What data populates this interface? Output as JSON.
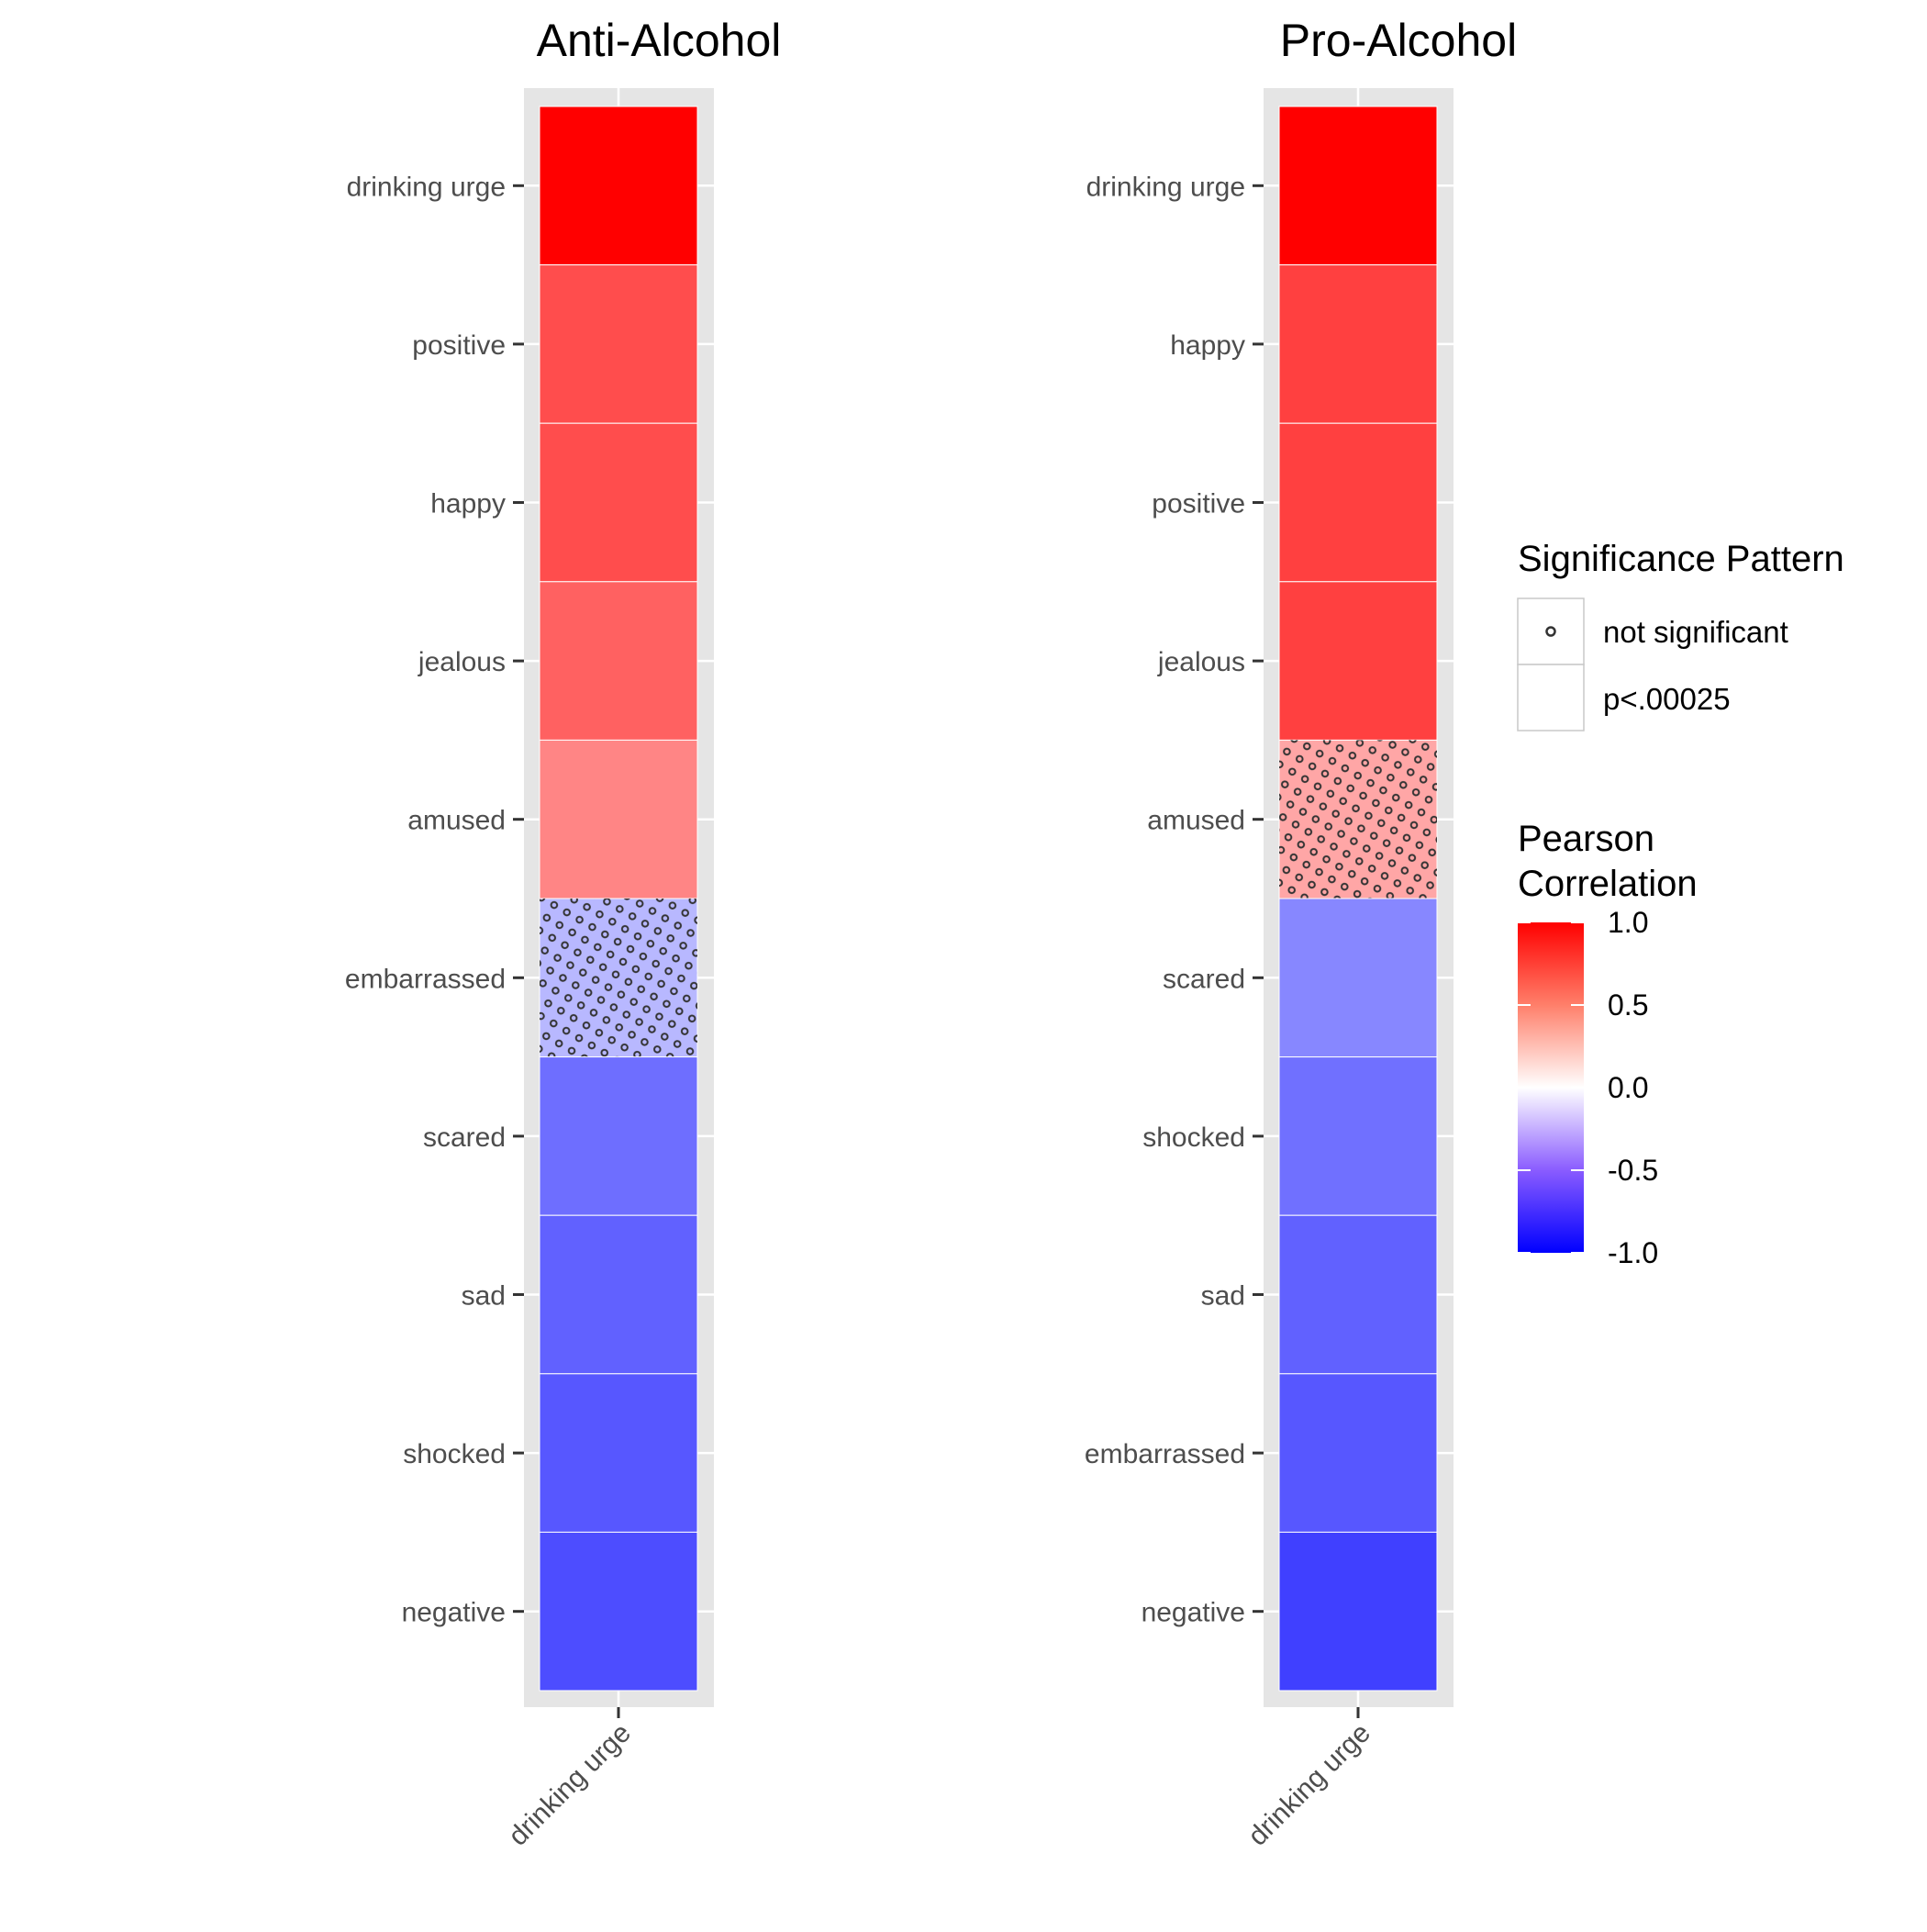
{
  "chart_data": [
    {
      "type": "heatmap",
      "title": "Anti-Alcohol",
      "x_categories": [
        "drinking urge"
      ],
      "y_categories": [
        "drinking urge",
        "positive",
        "happy",
        "jealous",
        "amused",
        "embarrassed",
        "scared",
        "sad",
        "shocked",
        "negative"
      ],
      "values": [
        1.0,
        0.7,
        0.7,
        0.62,
        0.48,
        -0.28,
        -0.57,
        -0.62,
        -0.66,
        -0.7
      ],
      "significance": [
        "p<.00025",
        "p<.00025",
        "p<.00025",
        "p<.00025",
        "p<.00025",
        "not significant",
        "p<.00025",
        "p<.00025",
        "p<.00025",
        "p<.00025"
      ]
    },
    {
      "type": "heatmap",
      "title": "Pro-Alcohol",
      "x_categories": [
        "drinking urge"
      ],
      "y_categories": [
        "drinking urge",
        "happy",
        "positive",
        "jealous",
        "amused",
        "scared",
        "shocked",
        "sad",
        "embarrassed",
        "negative"
      ],
      "values": [
        1.0,
        0.75,
        0.75,
        0.75,
        0.35,
        -0.47,
        -0.56,
        -0.62,
        -0.66,
        -0.75
      ],
      "significance": [
        "p<.00025",
        "p<.00025",
        "p<.00025",
        "p<.00025",
        "not significant",
        "p<.00025",
        "p<.00025",
        "p<.00025",
        "p<.00025",
        "p<.00025"
      ]
    }
  ],
  "legend": {
    "significance": {
      "title": "Significance Pattern",
      "items": [
        "not significant",
        "p<.00025"
      ]
    },
    "correlation": {
      "title_line1": "Pearson",
      "title_line2": "Correlation",
      "ticks": [
        "1.0",
        "0.5",
        "0.0",
        "-0.5",
        "-1.0"
      ],
      "tick_values": [
        1.0,
        0.5,
        0.0,
        -0.5,
        -1.0
      ],
      "limits": [
        -1.0,
        1.0
      ]
    }
  },
  "colors": {
    "high": "#ff0000",
    "mid": "#ffffff",
    "low": "#0000ff",
    "panel_background": "#e5e5e5",
    "grid": "#ffffff"
  }
}
